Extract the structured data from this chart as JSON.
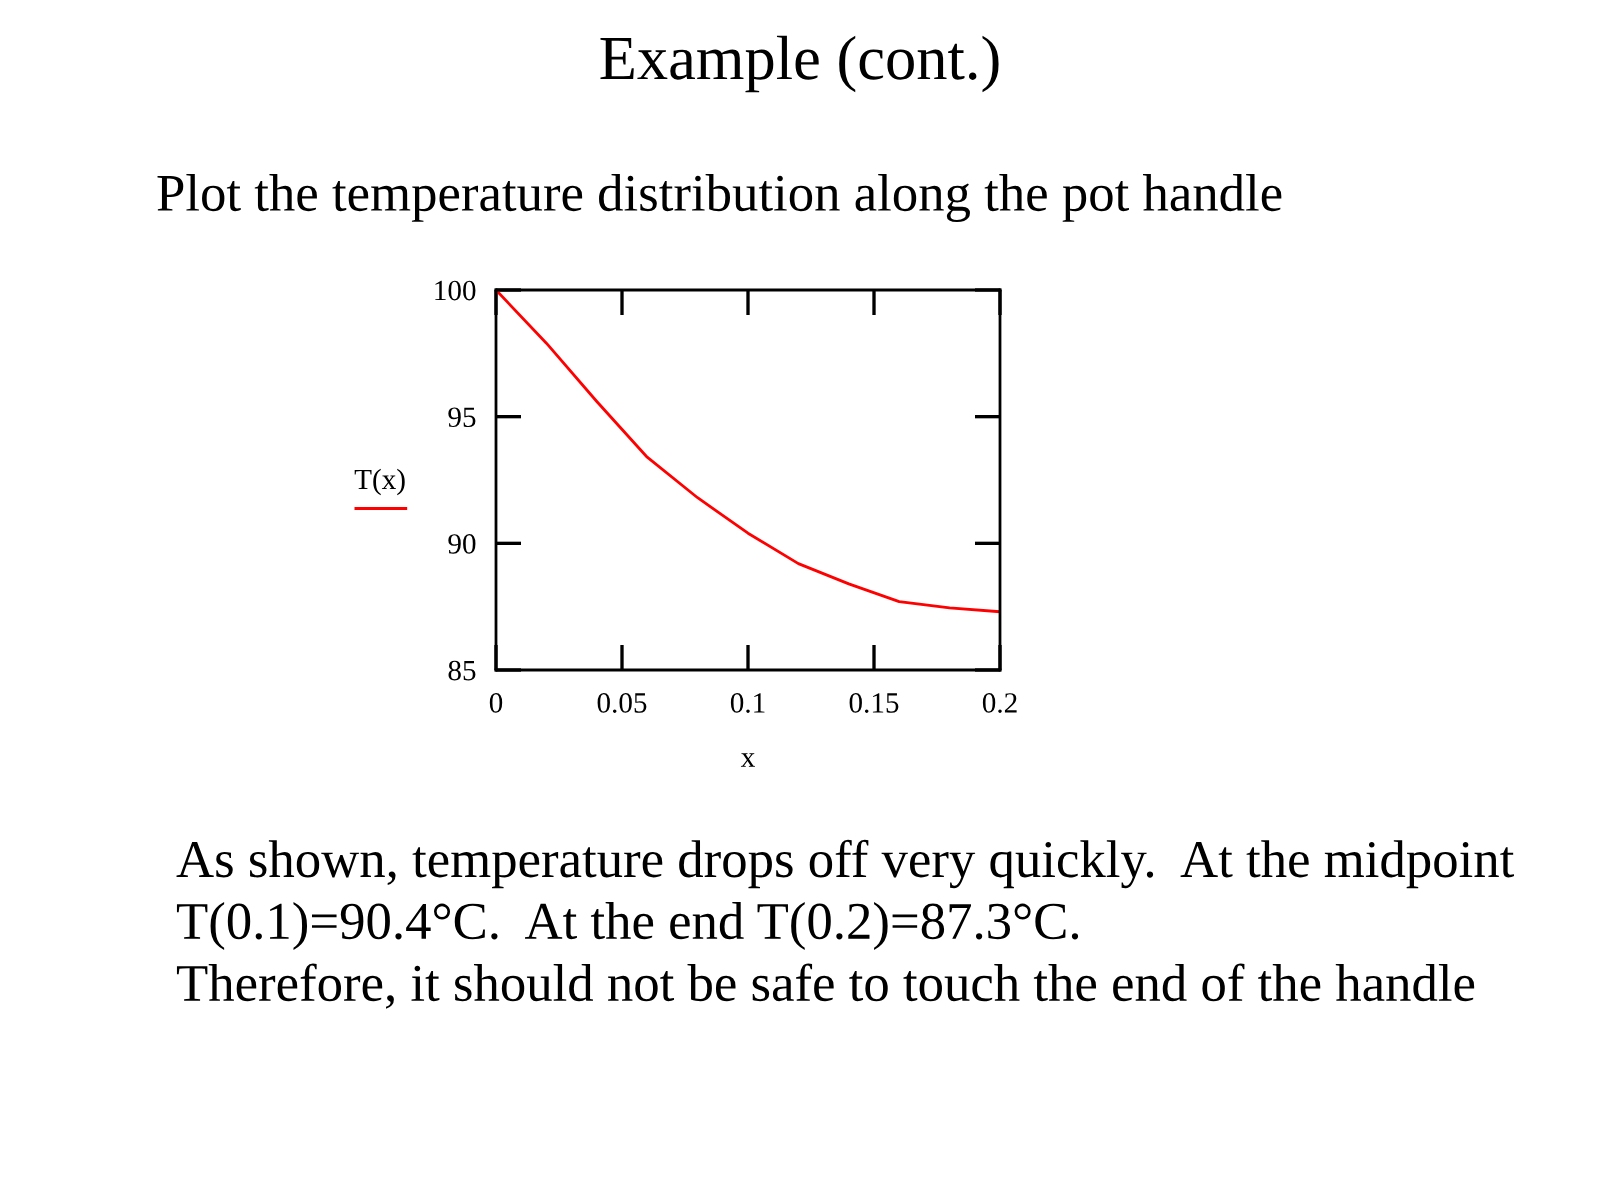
{
  "chart_data": {
    "type": "line",
    "title": "Example (cont.)",
    "subtitle": "Plot the temperature distribution along the pot handle",
    "xlabel": "x",
    "ylabel": "T(x)",
    "x": [
      0,
      0.02,
      0.04,
      0.06,
      0.08,
      0.1,
      0.12,
      0.14,
      0.16,
      0.18,
      0.2
    ],
    "series": [
      {
        "color": "#ff0000",
        "values": [
          100,
          97.9,
          95.6,
          93.4,
          91.8,
          90.4,
          89.2,
          88.4,
          87.7,
          87.45,
          87.3
        ]
      }
    ],
    "xlim": [
      0,
      0.2
    ],
    "xticks": [
      0,
      0.05,
      0.1,
      0.15,
      0.2
    ],
    "ylim": [
      85,
      100
    ],
    "yticks": [
      85,
      90,
      95,
      100
    ],
    "grid": false,
    "legend": false,
    "marker": "none",
    "line_style": "solid",
    "annotations": [
      "As shown, temperature drops off very quickly.  At the midpoint",
      "T(0.1)=90.4°C.  At the end T(0.2)=87.3°C.",
      "Therefore, it should not be safe to touch the end of the handle"
    ]
  }
}
